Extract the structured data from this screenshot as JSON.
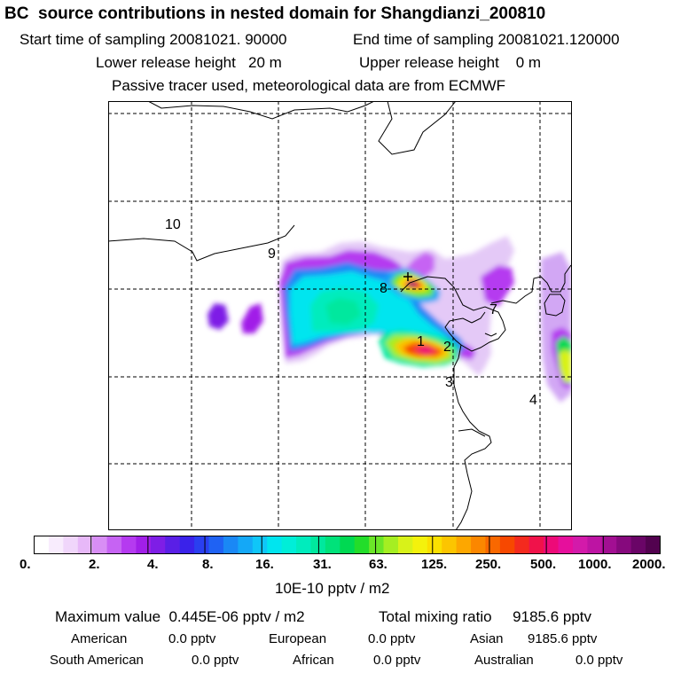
{
  "header": {
    "title": "BC  source contributions in nested domain for Shangdianzi_200810",
    "start_time": "Start time of sampling 20081021. 90000",
    "end_time": "End time of sampling 20081021.120000",
    "lower_release": "Lower release height   20 m",
    "upper_release": "Upper release height    0 m",
    "tracer_note": "Passive tracer used, meteorological data are from ECMWF"
  },
  "map": {
    "region_labels": [
      "1",
      "2",
      "3",
      "4",
      "7",
      "8",
      "9",
      "10"
    ],
    "receptor_marker": "+"
  },
  "colorbar": {
    "tick_labels": [
      "0.",
      "2.",
      "4.",
      "8.",
      "16.",
      "31.",
      "63.",
      "125.",
      "250.",
      "500.",
      "1000.",
      "2000."
    ],
    "colors": [
      "#ffffff",
      "#f8ecfd",
      "#f0d6fb",
      "#e7b8f8",
      "#d88ef5",
      "#c663f3",
      "#b53af0",
      "#a11fe8",
      "#7e1ee6",
      "#5a1fe6",
      "#3a22ea",
      "#2a3ff0",
      "#1f62f3",
      "#1a88f5",
      "#14a8f7",
      "#0fc6f8",
      "#00e5ef",
      "#00eed8",
      "#00ecbd",
      "#00e89e",
      "#00e27a",
      "#00d952",
      "#23dd2a",
      "#6be628",
      "#a5ee22",
      "#d8f219",
      "#f4f20c",
      "#fbe000",
      "#fcc500",
      "#fda700",
      "#fb8700",
      "#f96800",
      "#f74800",
      "#f42a1e",
      "#f0124a",
      "#ed0a78",
      "#e60f9c",
      "#d31aaa",
      "#bd14a3",
      "#a20f92",
      "#86097d",
      "#6a0567",
      "#52024f"
    ],
    "units": "10E-10 pptv / m2"
  },
  "footer": {
    "max_value": "Maximum value  0.445E-06 pptv / m2",
    "total_mixing": "Total mixing ratio     9185.6 pptv",
    "american_label": "American",
    "american_value": "0.0 pptv",
    "european_label": "European",
    "european_value": "0.0 pptv",
    "asian_label": "Asian",
    "asian_value": "9185.6 pptv",
    "south_american_label": "South American",
    "south_american_value": "0.0 pptv",
    "african_label": "African",
    "african_value": "0.0 pptv",
    "australian_label": "Australian",
    "australian_value": "0.0 pptv"
  }
}
